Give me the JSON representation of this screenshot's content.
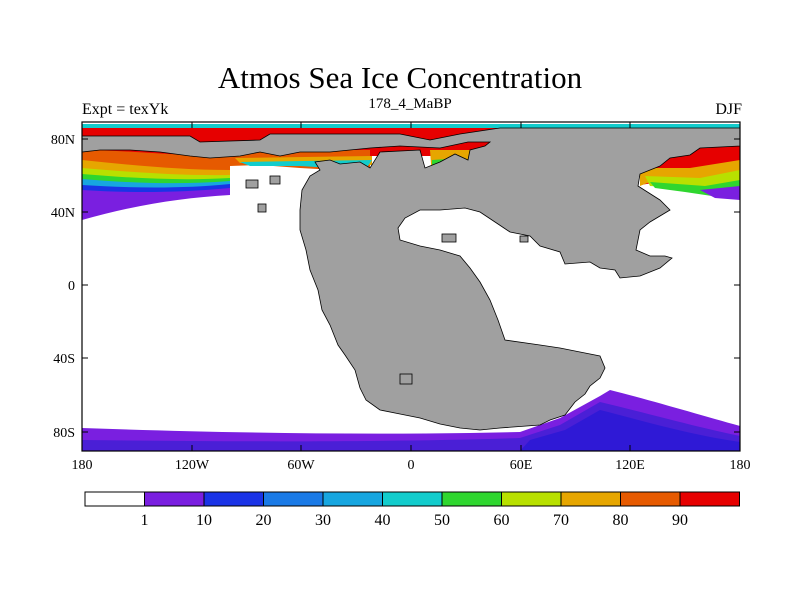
{
  "title": "Atmos Sea Ice Concentration",
  "left_label": "Expt = texYk",
  "center_label": "178_4_MaBP",
  "right_label": "DJF",
  "lat_ticks": [
    "80N",
    "40N",
    "0",
    "40S",
    "80S"
  ],
  "lon_ticks": [
    "180",
    "120W",
    "60W",
    "0",
    "60E",
    "120E",
    "180"
  ],
  "colorbar": {
    "levels": [
      "1",
      "10",
      "20",
      "30",
      "40",
      "50",
      "60",
      "70",
      "80",
      "90"
    ],
    "colors": [
      "#ffffff",
      "#7a1fe0",
      "#1a33e6",
      "#1a7ae6",
      "#17a6e0",
      "#12cccc",
      "#2fd62f",
      "#b8e000",
      "#e6a600",
      "#e65a00",
      "#e60000"
    ]
  },
  "land_color": "#a0a0a0",
  "edge_colors": [
    "#4a1fd6",
    "#2f19d6"
  ]
}
